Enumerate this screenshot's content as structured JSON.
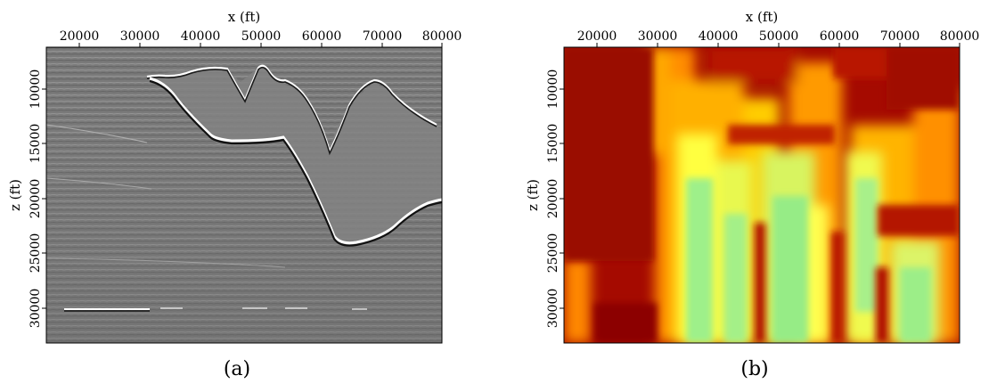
{
  "panels": [
    {
      "id": "a",
      "caption": "(a)",
      "x_axis": {
        "label": "x (ft)",
        "ticks": [
          "20000",
          "30000",
          "40000",
          "50000",
          "60000",
          "70000",
          "80000"
        ]
      },
      "z_axis": {
        "label": "z (ft)",
        "ticks": [
          "10000",
          "15000",
          "20000",
          "25000",
          "30000"
        ]
      },
      "content": "grayscale seismic migrated image"
    },
    {
      "id": "b",
      "caption": "(b)",
      "x_axis": {
        "label": "x (ft)",
        "ticks": [
          "20000",
          "30000",
          "40000",
          "50000",
          "60000",
          "70000",
          "80000"
        ]
      },
      "z_axis": {
        "label": "z (ft)",
        "ticks": [
          "10000",
          "15000",
          "20000",
          "25000",
          "30000"
        ]
      },
      "content": "heat-colormap attribute image",
      "colors": {
        "low": "#8a0000",
        "mid": "#ff9900",
        "high": "#ffff33",
        "peak": "#9cf080"
      }
    }
  ]
}
